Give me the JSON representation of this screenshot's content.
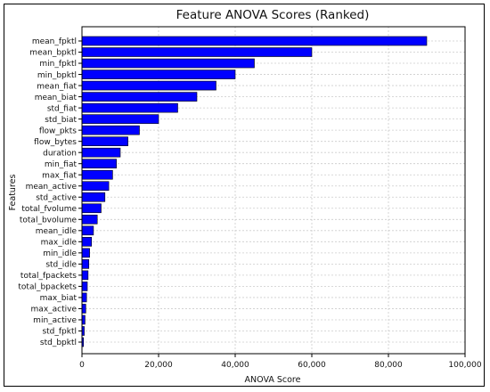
{
  "chart_data": {
    "type": "bar",
    "orientation": "horizontal",
    "title": "Feature ANOVA Scores (Ranked)",
    "xlabel": "ANOVA Score",
    "ylabel": "Features",
    "xlim": [
      0,
      100000
    ],
    "x_ticks": [
      0,
      20000,
      40000,
      60000,
      80000,
      100000
    ],
    "x_tick_labels": [
      "0",
      "20,000",
      "40,000",
      "60,000",
      "80,000",
      "100,000"
    ],
    "grid": true,
    "bar_color": "#0000ff",
    "categories": [
      "mean_fpktl",
      "mean_bpktl",
      "min_fpktl",
      "min_bpktl",
      "mean_fiat",
      "mean_biat",
      "std_fiat",
      "std_biat",
      "flow_pkts",
      "flow_bytes",
      "duration",
      "min_fiat",
      "max_fiat",
      "mean_active",
      "std_active",
      "total_fvolume",
      "total_bvolume",
      "mean_idle",
      "max_idle",
      "min_idle",
      "std_idle",
      "total_fpackets",
      "total_bpackets",
      "max_biat",
      "max_active",
      "min_active",
      "std_fpktl",
      "std_bpktl"
    ],
    "values": [
      90000,
      60000,
      45000,
      40000,
      35000,
      30000,
      25000,
      20000,
      15000,
      12000,
      10000,
      9000,
      8000,
      7000,
      6000,
      5000,
      4000,
      3000,
      2500,
      2000,
      1800,
      1600,
      1400,
      1200,
      1000,
      800,
      600,
      400
    ]
  }
}
